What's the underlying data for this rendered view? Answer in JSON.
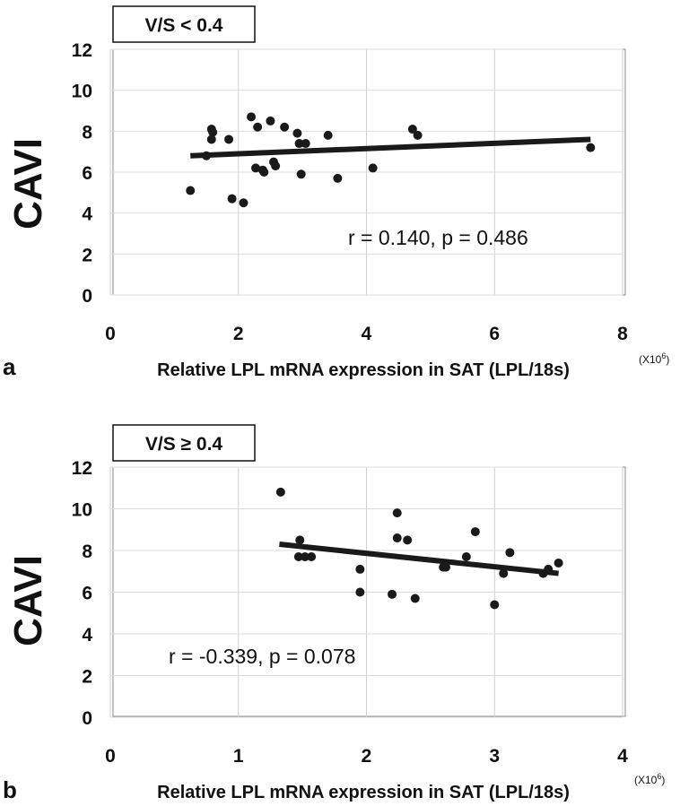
{
  "chart_data": [
    {
      "type": "scatter",
      "panel_label": "a",
      "title": "V/S < 0.4",
      "xlabel": "Relative LPL mRNA expression in SAT (LPL/18s)",
      "ylabel": "CAVI",
      "x_multiplier": "(X10",
      "x_multiplier_exp": "6",
      "x_multiplier_close": ")",
      "xlim": [
        0,
        8
      ],
      "ylim": [
        0,
        12
      ],
      "xticks": [
        0,
        2,
        4,
        6,
        8
      ],
      "yticks": [
        0,
        2,
        4,
        6,
        8,
        10,
        12
      ],
      "grid": "vertical-and-horizontal",
      "annotation": "r = 0.140, p = 0.486",
      "trendline": {
        "x": [
          1.25,
          7.5
        ],
        "y": [
          6.8,
          7.6
        ]
      },
      "points": [
        {
          "x": 1.25,
          "y": 5.1
        },
        {
          "x": 1.5,
          "y": 6.8
        },
        {
          "x": 1.58,
          "y": 8.1
        },
        {
          "x": 1.58,
          "y": 7.6
        },
        {
          "x": 1.6,
          "y": 7.95
        },
        {
          "x": 1.85,
          "y": 7.6
        },
        {
          "x": 1.9,
          "y": 4.7
        },
        {
          "x": 2.08,
          "y": 4.5
        },
        {
          "x": 2.2,
          "y": 8.7
        },
        {
          "x": 2.27,
          "y": 6.2
        },
        {
          "x": 2.3,
          "y": 8.2
        },
        {
          "x": 2.38,
          "y": 6.1
        },
        {
          "x": 2.4,
          "y": 6.0
        },
        {
          "x": 2.5,
          "y": 8.5
        },
        {
          "x": 2.55,
          "y": 6.5
        },
        {
          "x": 2.58,
          "y": 6.3
        },
        {
          "x": 2.72,
          "y": 8.2
        },
        {
          "x": 2.92,
          "y": 7.9
        },
        {
          "x": 2.95,
          "y": 7.4
        },
        {
          "x": 2.98,
          "y": 5.9
        },
        {
          "x": 3.05,
          "y": 7.4
        },
        {
          "x": 3.4,
          "y": 7.8
        },
        {
          "x": 3.55,
          "y": 5.7
        },
        {
          "x": 4.1,
          "y": 6.2
        },
        {
          "x": 4.72,
          "y": 8.1
        },
        {
          "x": 4.8,
          "y": 7.8
        },
        {
          "x": 7.5,
          "y": 7.2
        }
      ]
    },
    {
      "type": "scatter",
      "panel_label": "b",
      "title": "V/S ≥ 0.4",
      "xlabel": "Relative LPL mRNA expression in SAT (LPL/18s)",
      "ylabel": "CAVI",
      "x_multiplier": "(X10",
      "x_multiplier_exp": "6",
      "x_multiplier_close": ")",
      "xlim": [
        0,
        4
      ],
      "ylim": [
        0,
        12
      ],
      "xticks": [
        0,
        1,
        2,
        3,
        4
      ],
      "yticks": [
        0,
        2,
        4,
        6,
        8,
        10,
        12
      ],
      "grid": "vertical-and-horizontal",
      "annotation": "r = -0.339, p = 0.078",
      "trendline": {
        "x": [
          1.32,
          3.5
        ],
        "y": [
          8.3,
          6.9
        ]
      },
      "points": [
        {
          "x": 1.33,
          "y": 10.8
        },
        {
          "x": 1.47,
          "y": 7.7
        },
        {
          "x": 1.48,
          "y": 8.5
        },
        {
          "x": 1.52,
          "y": 7.7
        },
        {
          "x": 1.57,
          "y": 7.7
        },
        {
          "x": 1.95,
          "y": 7.1
        },
        {
          "x": 1.95,
          "y": 6.0
        },
        {
          "x": 2.2,
          "y": 5.9
        },
        {
          "x": 2.24,
          "y": 9.8
        },
        {
          "x": 2.24,
          "y": 8.6
        },
        {
          "x": 2.32,
          "y": 8.5
        },
        {
          "x": 2.38,
          "y": 5.7
        },
        {
          "x": 2.6,
          "y": 7.2
        },
        {
          "x": 2.62,
          "y": 7.2
        },
        {
          "x": 2.78,
          "y": 7.7
        },
        {
          "x": 2.85,
          "y": 8.9
        },
        {
          "x": 3.0,
          "y": 5.4
        },
        {
          "x": 3.07,
          "y": 6.9
        },
        {
          "x": 3.12,
          "y": 7.9
        },
        {
          "x": 3.38,
          "y": 6.9
        },
        {
          "x": 3.42,
          "y": 7.1
        },
        {
          "x": 3.5,
          "y": 7.4
        }
      ]
    }
  ]
}
